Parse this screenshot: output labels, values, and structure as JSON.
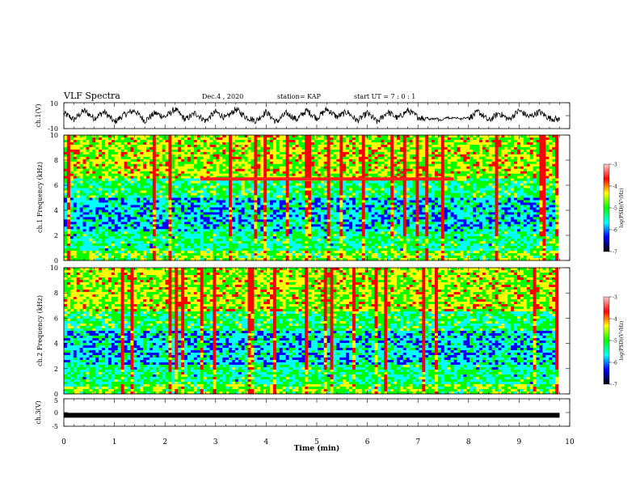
{
  "header": {
    "title": "VLF Spectra",
    "date": "Dec.4 , 2020",
    "station": "station= KAP",
    "start_ut": "start UT =  7 : 0 : 1"
  },
  "colors": {
    "spectrogram_scale": [
      "#000080",
      "#0000ff",
      "#00ffff",
      "#00ff00",
      "#ffff00",
      "#ff0000",
      "#ff0000"
    ],
    "red_band": "#ff2020",
    "trace": "#000000"
  },
  "chart_data": [
    {
      "type": "line",
      "title": "",
      "ylabel": "ch.1(V)",
      "ylim": [
        -10,
        10
      ],
      "ytick_labels": [
        "10",
        "-10"
      ],
      "xlim": [
        0,
        10
      ],
      "description_of_values": "waveform amplitude vs time (min)",
      "x": [
        0,
        0.2,
        0.4,
        0.6,
        0.8,
        1.0,
        1.2,
        1.4,
        1.6,
        1.8,
        2.0,
        2.2,
        2.4,
        2.6,
        2.8,
        3.0,
        3.2,
        3.4,
        3.6,
        3.8,
        4.0,
        4.2,
        4.4,
        4.6,
        4.8,
        5.0,
        5.2,
        5.4,
        5.6,
        5.8,
        6.0,
        6.2,
        6.4,
        6.6,
        6.8,
        7.0,
        7.2,
        7.4,
        7.6,
        7.8,
        8.0,
        8.2,
        8.4,
        8.6,
        8.8,
        9.0,
        9.2,
        9.4,
        9.6,
        9.8
      ],
      "y": [
        2,
        -3,
        4,
        -2,
        3,
        -5,
        1,
        4,
        -4,
        2,
        -1,
        5,
        -3,
        2,
        -4,
        3,
        -2,
        5,
        -1,
        -4,
        3,
        -5,
        2,
        -3,
        4,
        -2,
        5,
        -1,
        3,
        -4,
        2,
        -5,
        3,
        -2,
        4,
        -1,
        -3,
        -4,
        -2,
        -3,
        -2,
        3,
        -4,
        2,
        -3,
        4,
        -1,
        3,
        -2,
        -3
      ]
    },
    {
      "type": "heatmap",
      "title": "",
      "ylabel": "ch.1 Frequency (kHz)",
      "ylim": [
        0,
        10
      ],
      "ytick_labels": [
        "0",
        "2",
        "4",
        "6",
        "8",
        "10"
      ],
      "xlim": [
        0,
        10
      ],
      "colorbar": {
        "label": "log(PSD)(V²/Hz)",
        "range": [
          -7,
          -3
        ],
        "tick_labels": [
          "-3",
          "-4",
          "-5",
          "-6",
          "-7"
        ]
      },
      "highlight_band": {
        "freq_khz": 6.5,
        "t_start_min": 2.7,
        "t_end_min": 7.7
      }
    },
    {
      "type": "heatmap",
      "title": "",
      "ylabel": "ch.2 Frequency (kHz)",
      "ylim": [
        0,
        10
      ],
      "ytick_labels": [
        "0",
        "2",
        "4",
        "6",
        "8",
        "10"
      ],
      "xlim": [
        0,
        10
      ],
      "colorbar": {
        "label": "log(PSD)(V²/Hz)",
        "range": [
          -7,
          -3
        ],
        "tick_labels": [
          "-3",
          "-4",
          "-5",
          "-6",
          "-7"
        ]
      }
    },
    {
      "type": "line",
      "title": "",
      "ylabel": "ch.3(V)",
      "ylim": [
        -5,
        5
      ],
      "ytick_labels": [
        "5",
        "0",
        "-5"
      ],
      "xlim": [
        0,
        10
      ],
      "description_of_values": "near-constant level around -1 V",
      "x": [
        0,
        9.8
      ],
      "y": [
        -1,
        -1
      ]
    }
  ],
  "xaxis": {
    "label": "Time  (min)",
    "tick_labels": [
      "0",
      "1",
      "2",
      "3",
      "4",
      "5",
      "6",
      "7",
      "8",
      "9",
      "10"
    ]
  }
}
